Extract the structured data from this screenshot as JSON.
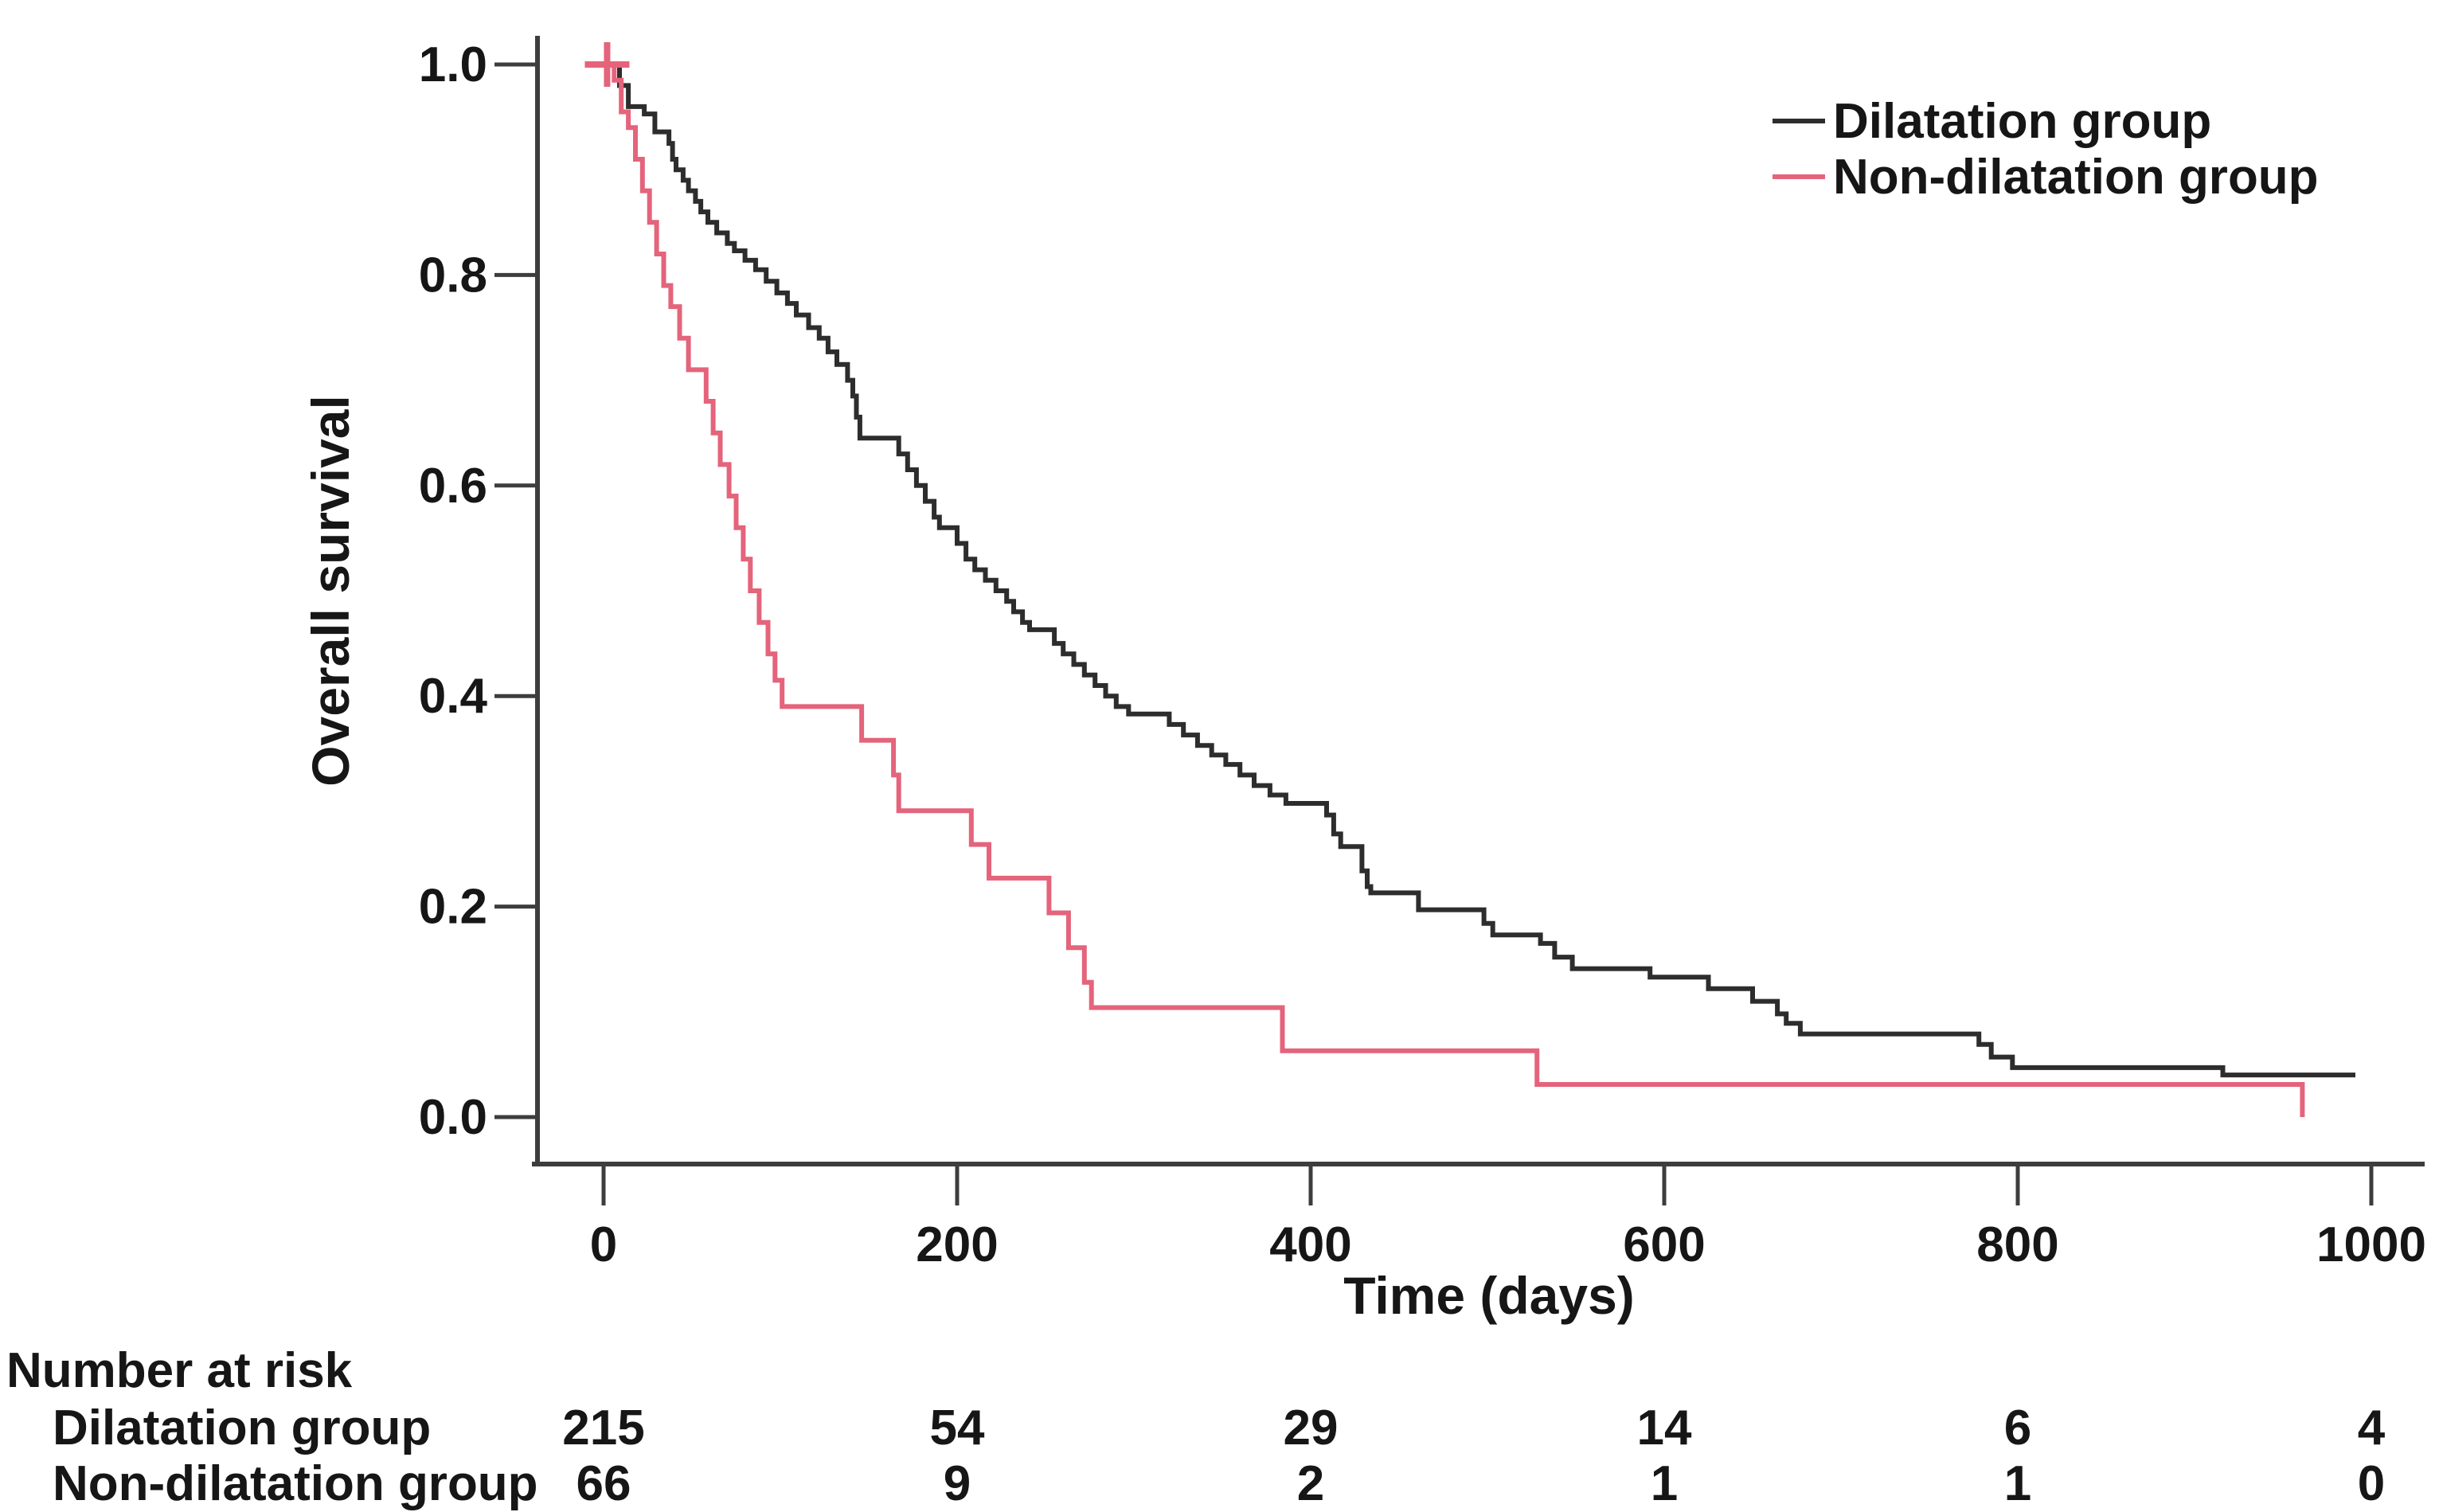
{
  "figure": {
    "y_axis_title": "Overall survival",
    "x_axis_title": "Time (days)",
    "risk_table_title": "Number at risk"
  },
  "chart_data": {
    "type": "line",
    "subtype": "kaplan-meier-step",
    "title": "",
    "xlabel": "Time (days)",
    "ylabel": "Overall survival",
    "xlim": [
      0,
      1000
    ],
    "ylim": [
      0.0,
      1.0
    ],
    "grid": false,
    "legend_position": "top-right",
    "x_ticks": [
      "0",
      "200",
      "400",
      "600",
      "800",
      "1000"
    ],
    "y_ticks": [
      "1.0",
      "0.8",
      "0.6",
      "0.4",
      "0.2",
      "0.0"
    ],
    "axis_color": "#3d3d3d",
    "series": [
      {
        "name": "Dilatation group",
        "color": "#2d2d2d",
        "end_time": 991,
        "censor_marks": [],
        "points": [
          [
            0,
            1.0
          ],
          [
            9,
            0.98
          ],
          [
            14,
            0.96
          ],
          [
            23,
            0.953
          ],
          [
            29,
            0.936
          ],
          [
            37,
            0.925
          ],
          [
            39,
            0.91
          ],
          [
            41,
            0.9
          ],
          [
            45,
            0.89
          ],
          [
            48,
            0.88
          ],
          [
            52,
            0.87
          ],
          [
            55,
            0.86
          ],
          [
            59,
            0.85
          ],
          [
            64,
            0.84
          ],
          [
            70,
            0.83
          ],
          [
            74,
            0.823
          ],
          [
            80,
            0.814
          ],
          [
            86,
            0.805
          ],
          [
            92,
            0.794
          ],
          [
            98,
            0.783
          ],
          [
            104,
            0.773
          ],
          [
            109,
            0.762
          ],
          [
            116,
            0.75
          ],
          [
            122,
            0.74
          ],
          [
            127,
            0.727
          ],
          [
            132,
            0.715
          ],
          [
            138,
            0.7
          ],
          [
            141,
            0.685
          ],
          [
            143,
            0.665
          ],
          [
            145,
            0.645
          ],
          [
            167,
            0.63
          ],
          [
            172,
            0.615
          ],
          [
            177,
            0.6
          ],
          [
            182,
            0.585
          ],
          [
            187,
            0.57
          ],
          [
            190,
            0.56
          ],
          [
            200,
            0.545
          ],
          [
            205,
            0.53
          ],
          [
            210,
            0.52
          ],
          [
            216,
            0.51
          ],
          [
            222,
            0.5
          ],
          [
            228,
            0.49
          ],
          [
            232,
            0.48
          ],
          [
            237,
            0.47
          ],
          [
            241,
            0.463
          ],
          [
            255,
            0.45
          ],
          [
            260,
            0.44
          ],
          [
            266,
            0.43
          ],
          [
            272,
            0.42
          ],
          [
            278,
            0.41
          ],
          [
            284,
            0.4
          ],
          [
            290,
            0.39
          ],
          [
            297,
            0.383
          ],
          [
            320,
            0.373
          ],
          [
            328,
            0.363
          ],
          [
            336,
            0.353
          ],
          [
            344,
            0.344
          ],
          [
            352,
            0.335
          ],
          [
            360,
            0.325
          ],
          [
            368,
            0.315
          ],
          [
            377,
            0.306
          ],
          [
            386,
            0.298
          ],
          [
            409,
            0.287
          ],
          [
            413,
            0.269
          ],
          [
            417,
            0.257
          ],
          [
            429,
            0.234
          ],
          [
            432,
            0.219
          ],
          [
            434,
            0.213
          ],
          [
            461,
            0.197
          ],
          [
            498,
            0.184
          ],
          [
            503,
            0.173
          ],
          [
            530,
            0.165
          ],
          [
            538,
            0.152
          ],
          [
            548,
            0.141
          ],
          [
            592,
            0.133
          ],
          [
            625,
            0.122
          ],
          [
            650,
            0.11
          ],
          [
            664,
            0.098
          ],
          [
            669,
            0.089
          ],
          [
            677,
            0.079
          ],
          [
            778,
            0.069
          ],
          [
            785,
            0.057
          ],
          [
            797,
            0.047
          ],
          [
            916,
            0.04
          ]
        ]
      },
      {
        "name": "Non-dilatation group",
        "color": "#e4647b",
        "end_time": 961,
        "censor_marks": [
          [
            2,
            1.0
          ]
        ],
        "points": [
          [
            0,
            1.0
          ],
          [
            6,
            0.985
          ],
          [
            10,
            0.955
          ],
          [
            14,
            0.94
          ],
          [
            18,
            0.91
          ],
          [
            22,
            0.88
          ],
          [
            26,
            0.85
          ],
          [
            30,
            0.82
          ],
          [
            34,
            0.79
          ],
          [
            38,
            0.77
          ],
          [
            43,
            0.74
          ],
          [
            48,
            0.71
          ],
          [
            58,
            0.68
          ],
          [
            62,
            0.65
          ],
          [
            66,
            0.62
          ],
          [
            71,
            0.59
          ],
          [
            75,
            0.56
          ],
          [
            79,
            0.53
          ],
          [
            83,
            0.5
          ],
          [
            88,
            0.47
          ],
          [
            93,
            0.44
          ],
          [
            97,
            0.415
          ],
          [
            101,
            0.39
          ],
          [
            146,
            0.358
          ],
          [
            164,
            0.325
          ],
          [
            167,
            0.291
          ],
          [
            208,
            0.259
          ],
          [
            218,
            0.227
          ],
          [
            252,
            0.194
          ],
          [
            263,
            0.161
          ],
          [
            272,
            0.128
          ],
          [
            276,
            0.104
          ],
          [
            384,
            0.063
          ],
          [
            528,
            0.031
          ],
          [
            961,
            0.0
          ]
        ]
      }
    ],
    "risk_table": {
      "title": "Number at risk",
      "time_points": [
        0,
        200,
        400,
        600,
        800,
        1000
      ],
      "rows": [
        {
          "label": "Dilatation group",
          "values": [
            "215",
            "54",
            "29",
            "14",
            "6",
            "4"
          ]
        },
        {
          "label": "Non-dilatation group",
          "values": [
            "66",
            "9",
            "2",
            "1",
            "1",
            "0"
          ]
        }
      ]
    }
  }
}
